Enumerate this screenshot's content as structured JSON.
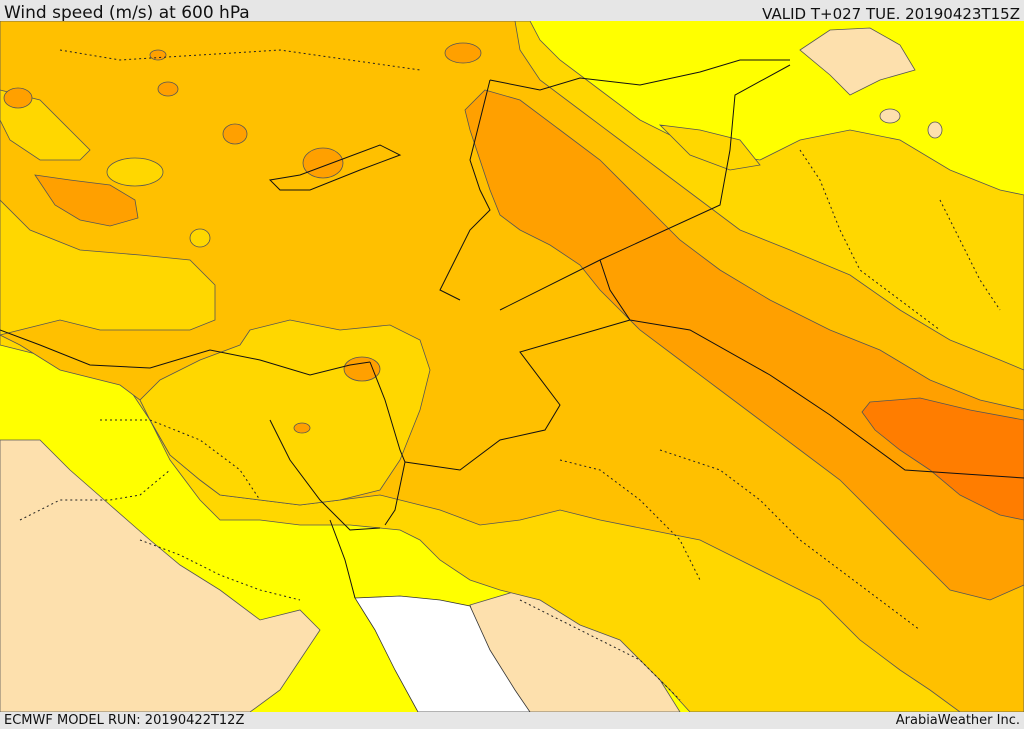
{
  "header": {
    "title": "Wind speed (m/s) at 600 hPa",
    "valid": "VALID T+027 TUE. 20190423T15Z"
  },
  "footer": {
    "model_run": "ECMWF MODEL RUN: 20190422T12Z",
    "credit": "ArabiaWeather Inc."
  },
  "colors": {
    "band_lightest": "#fde0ad",
    "band_yellow": "#ffff00",
    "band_gold": "#ffd700",
    "band_amber": "#ffc000",
    "band_orange": "#ffa000",
    "band_dark_orange": "#ff7d00",
    "sea_no_data": "#ffffff"
  }
}
